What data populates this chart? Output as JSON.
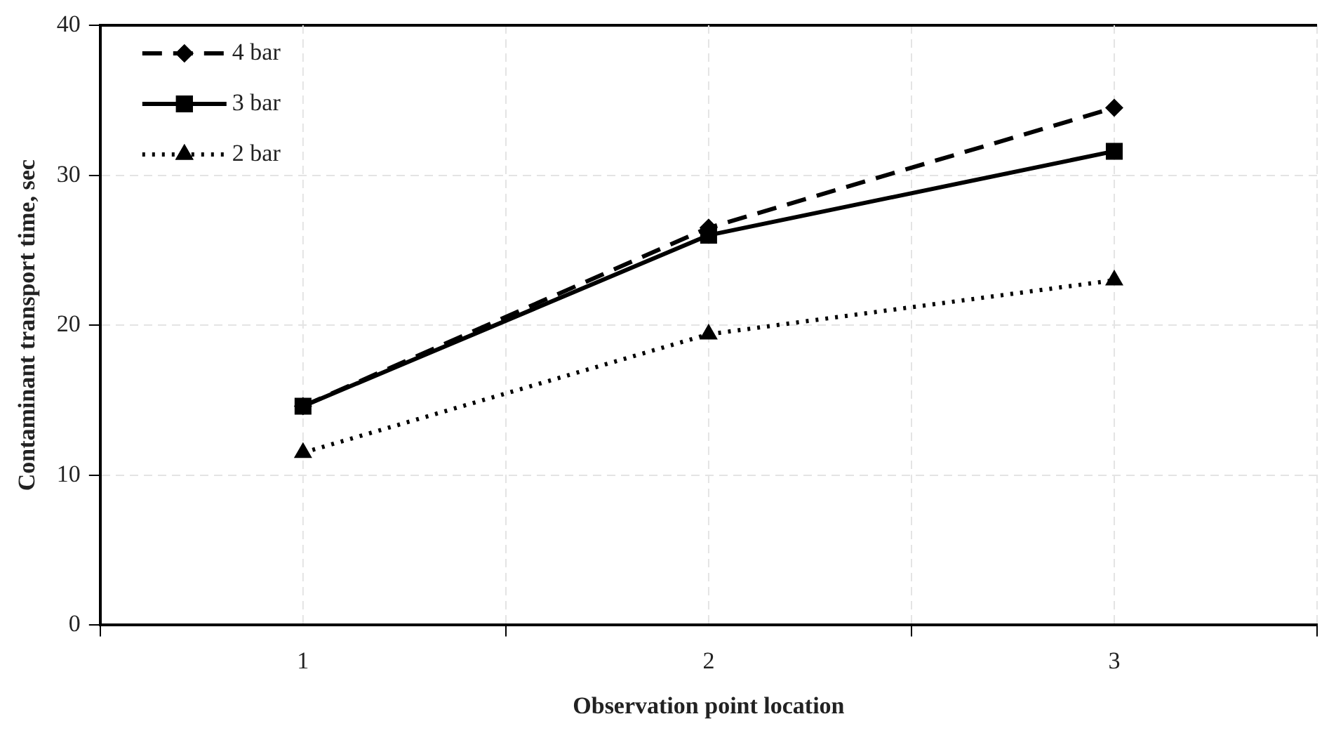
{
  "chart_data": {
    "type": "line",
    "xlabel": "Observation point location",
    "ylabel": "Contaminant transport time, sec",
    "categories": [
      "1",
      "2",
      "3"
    ],
    "series": [
      {
        "name": "4 bar",
        "color": "#000000",
        "values": [
          14.6,
          26.5,
          34.5
        ],
        "marker": "diamond",
        "line_style": "dashed"
      },
      {
        "name": "3 bar",
        "color": "#000000",
        "values": [
          14.6,
          26.0,
          31.6
        ],
        "marker": "square",
        "line_style": "solid"
      },
      {
        "name": "2 bar",
        "color": "#000000",
        "values": [
          11.5,
          19.4,
          23.0
        ],
        "marker": "triangle",
        "line_style": "dotted"
      }
    ],
    "ylim": [
      0,
      40
    ],
    "yticks": [
      0,
      10,
      20,
      30,
      40
    ],
    "grid": true,
    "legend": "top left"
  }
}
